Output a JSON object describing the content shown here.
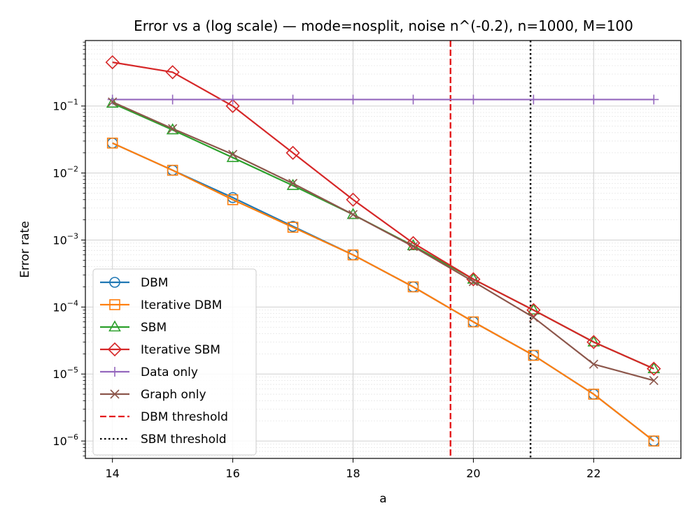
{
  "chart_data": {
    "type": "line",
    "title": "Error vs a (log scale) — mode=nosplit, noise n^(-0.2), n=1000, M=100",
    "xlabel": "a",
    "ylabel": "Error rate",
    "yscale": "log",
    "xlim": [
      13.55,
      23.45
    ],
    "ylim": [
      5.5e-07,
      0.95
    ],
    "xticks": [
      14,
      16,
      18,
      20,
      22
    ],
    "yticks": [
      1e-06,
      1e-05,
      0.0001,
      0.001,
      0.01,
      0.1
    ],
    "ytick_exponents": [
      "−6",
      "−5",
      "−4",
      "−3",
      "−2",
      "−1"
    ],
    "ytick_base": "10",
    "grid": true,
    "legend_position": "lower-left",
    "x": [
      14,
      15,
      16,
      17,
      18,
      19,
      20,
      21,
      22,
      23
    ],
    "series": [
      {
        "name": "DBM",
        "color": "#1f77b4",
        "marker": "circle",
        "linestyle": "solid",
        "values": [
          0.028,
          0.011,
          0.0043,
          0.0016,
          0.0006,
          0.0002,
          6e-05,
          1.9e-05,
          5e-06,
          1e-06
        ]
      },
      {
        "name": "Iterative DBM",
        "color": "#ff7f0e",
        "marker": "square",
        "linestyle": "solid",
        "values": [
          0.028,
          0.011,
          0.004,
          0.00155,
          0.0006,
          0.0002,
          6e-05,
          1.9e-05,
          5e-06,
          1e-06
        ]
      },
      {
        "name": "SBM",
        "color": "#2ca02c",
        "marker": "triangle",
        "linestyle": "solid",
        "values": [
          0.11,
          0.044,
          0.017,
          0.0065,
          0.0024,
          0.00082,
          0.00026,
          9e-05,
          3e-05,
          1.2e-05
        ]
      },
      {
        "name": "Iterative SBM",
        "color": "#d62728",
        "marker": "diamond",
        "linestyle": "solid",
        "values": [
          0.45,
          0.32,
          0.1,
          0.02,
          0.004,
          0.0009,
          0.00026,
          9e-05,
          3e-05,
          1.2e-05
        ]
      },
      {
        "name": "Data only",
        "color": "#9467bd",
        "marker": "plus",
        "linestyle": "solid",
        "values": [
          0.125,
          0.125,
          0.125,
          0.125,
          0.125,
          0.125,
          0.125,
          0.125,
          0.125,
          0.125
        ]
      },
      {
        "name": "Graph only",
        "color": "#8c564b",
        "marker": "x",
        "linestyle": "solid",
        "values": [
          0.115,
          0.046,
          0.019,
          0.007,
          0.0024,
          0.0008,
          0.00024,
          7e-05,
          1.4e-05,
          8e-06
        ]
      }
    ],
    "vlines": [
      {
        "name": "DBM threshold",
        "x": 19.62,
        "color": "#e41a1c",
        "linestyle": "dashed"
      },
      {
        "name": "SBM threshold",
        "x": 20.95,
        "color": "#000000",
        "linestyle": "dotted"
      }
    ]
  }
}
